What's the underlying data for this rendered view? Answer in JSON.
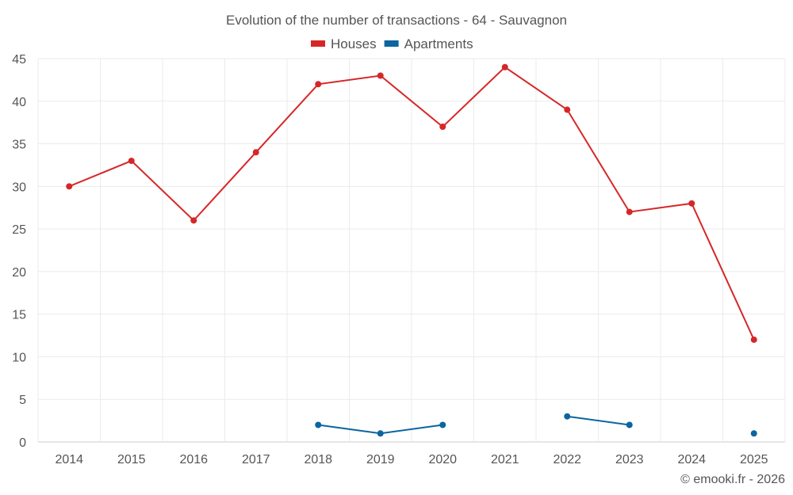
{
  "chart_data": {
    "type": "line",
    "title": "Evolution of the number of transactions - 64 - Sauvagnon",
    "categories": [
      "2014",
      "2015",
      "2016",
      "2017",
      "2018",
      "2019",
      "2020",
      "2021",
      "2022",
      "2023",
      "2024",
      "2025"
    ],
    "series": [
      {
        "name": "Houses",
        "color": "#d62728",
        "values": [
          30,
          33,
          26,
          34,
          42,
          43,
          37,
          44,
          39,
          27,
          28,
          12
        ]
      },
      {
        "name": "Apartments",
        "color": "#0b65a0",
        "values": [
          null,
          null,
          null,
          null,
          2,
          1,
          2,
          null,
          3,
          2,
          null,
          1
        ]
      }
    ],
    "ylim": [
      0,
      45
    ],
    "yticks": [
      0,
      5,
      10,
      15,
      20,
      25,
      30,
      35,
      40,
      45
    ],
    "grid": true,
    "legend": "top-center",
    "xlabel": "",
    "ylabel": ""
  },
  "credit": "© emooki.fr - 2026"
}
